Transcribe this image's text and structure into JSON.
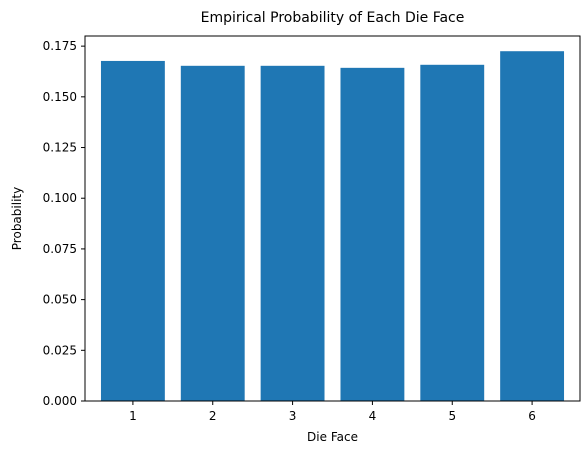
{
  "chart_data": {
    "type": "bar",
    "title": "Empirical Probability of Each Die Face",
    "xlabel": "Die Face",
    "ylabel": "Probability",
    "categories": [
      "1",
      "2",
      "3",
      "4",
      "5",
      "6"
    ],
    "values": [
      0.1677,
      0.1653,
      0.1653,
      0.1643,
      0.1658,
      0.1725
    ],
    "ylim": [
      0,
      0.18
    ],
    "yticks": [
      0.0,
      0.025,
      0.05,
      0.075,
      0.1,
      0.125,
      0.15,
      0.175
    ],
    "ytick_labels": [
      "0.000",
      "0.025",
      "0.050",
      "0.075",
      "0.100",
      "0.125",
      "0.150",
      "0.175"
    ],
    "bar_color": "#1f77b4",
    "grid": false,
    "legend": "none"
  }
}
